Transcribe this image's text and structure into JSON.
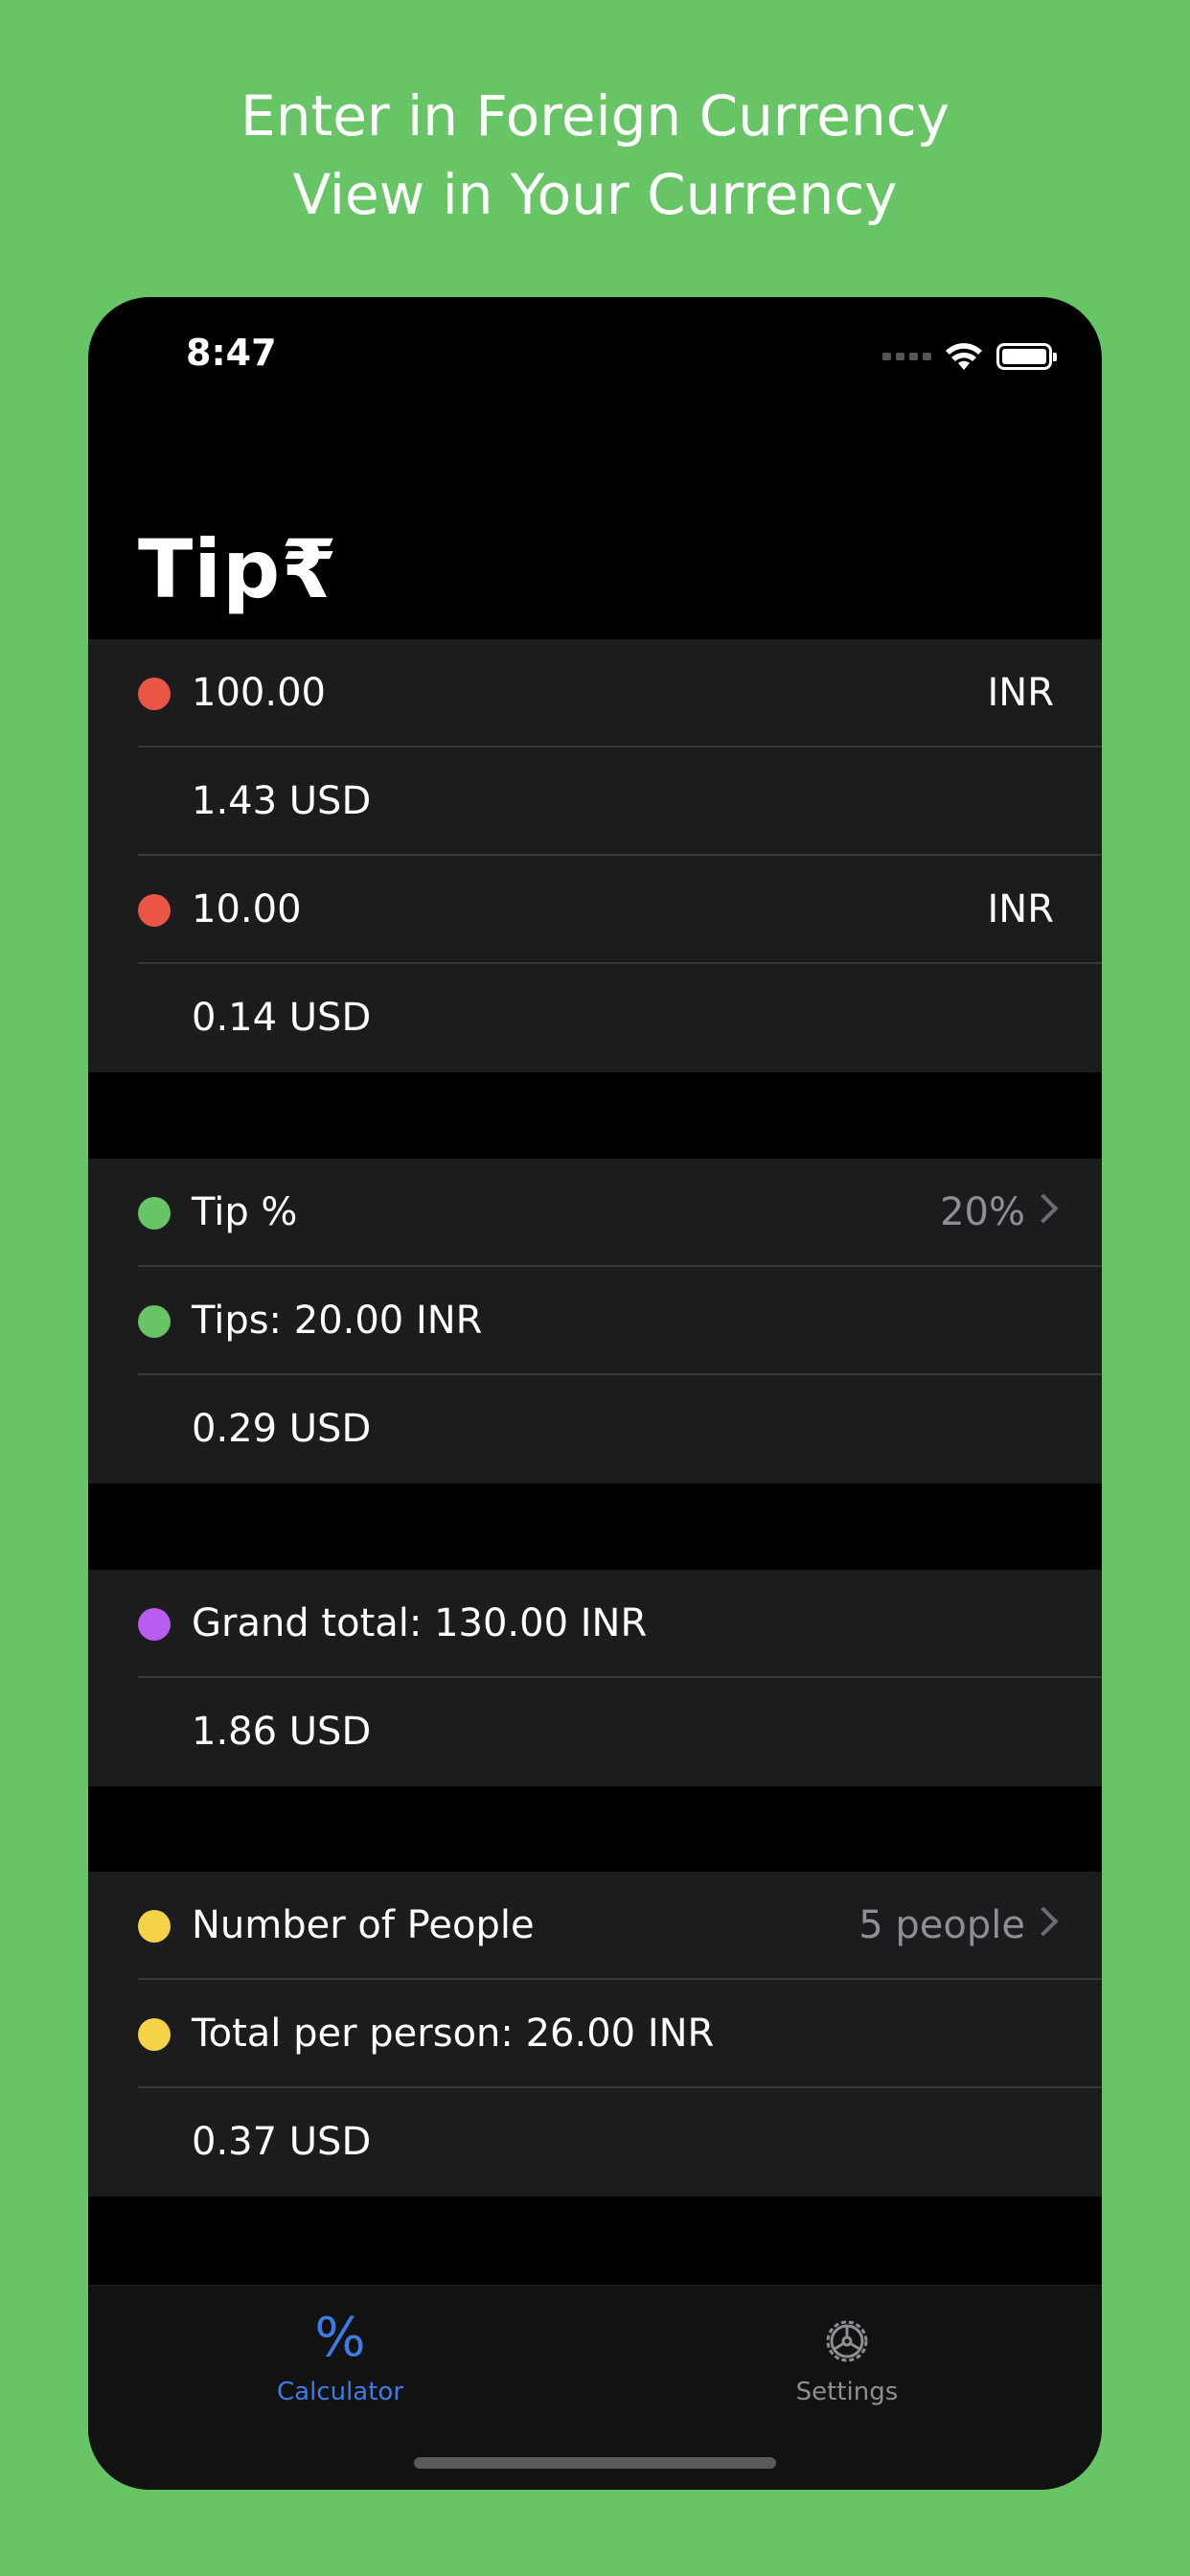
{
  "promo": {
    "line1": "Enter in Foreign Currency",
    "line2": "View in Your Currency"
  },
  "status": {
    "time": "8:47"
  },
  "app_title": "Tip₹",
  "colors": {
    "background": "#67c566",
    "red_dot": "#eb5545",
    "green_dot": "#67c566",
    "purple_dot": "#b95cf0",
    "yellow_dot": "#f5d349",
    "accent_blue": "#3e7be6"
  },
  "bill": {
    "amount1": "100.00",
    "currency1": "INR",
    "converted1": "1.43  USD",
    "amount2": "10.00",
    "currency2": "INR",
    "converted2": "0.14  USD"
  },
  "tip": {
    "label": "Tip %",
    "value": "20%",
    "tips": "Tips: 20.00  INR",
    "converted": "0.29  USD"
  },
  "grand_total": {
    "label": "Grand total: 130.00  INR",
    "converted": "1.86  USD"
  },
  "people": {
    "label": "Number of People",
    "value": "5 people",
    "per_person": "Total per person: 26.00  INR",
    "converted": "0.37  USD"
  },
  "tabs": [
    {
      "label": "Calculator",
      "icon": "percent-icon",
      "active": true
    },
    {
      "label": "Settings",
      "icon": "gear-icon",
      "active": false
    }
  ]
}
